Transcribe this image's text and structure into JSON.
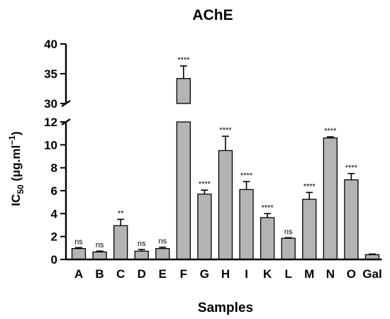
{
  "chart_data": {
    "type": "bar",
    "title": "AChE",
    "xlabel": "Samples",
    "ylabel": {
      "main": "IC",
      "subscript": "50",
      "units_open": " (μg.ml",
      "superscript": "−1",
      "units_close": ")"
    },
    "y_axis": {
      "broken": true,
      "lower_range": [
        0,
        12
      ],
      "lower_ticks": [
        "0",
        "2",
        "4",
        "6",
        "8",
        "10",
        "12"
      ],
      "upper_range": [
        30,
        40
      ],
      "upper_ticks": [
        "30",
        "35",
        "40"
      ]
    },
    "categories": [
      "A",
      "B",
      "C",
      "D",
      "E",
      "F",
      "G",
      "H",
      "I",
      "K",
      "L",
      "M",
      "N",
      "O",
      "Gal"
    ],
    "values": [
      0.95,
      0.65,
      2.95,
      0.72,
      0.95,
      34.2,
      5.7,
      9.5,
      6.1,
      3.65,
      1.85,
      5.25,
      10.6,
      6.95,
      0.42
    ],
    "errors": [
      0.08,
      0.08,
      0.55,
      0.15,
      0.12,
      2.1,
      0.35,
      1.25,
      0.7,
      0.35,
      0.05,
      0.6,
      0.1,
      0.55,
      0.05
    ],
    "significance": [
      "ns",
      "ns",
      "**",
      "ns",
      "ns",
      "****",
      "****",
      "****",
      "****",
      "****",
      "ns",
      "****",
      "****",
      "****",
      ""
    ],
    "bar_color": "#b4b4b4"
  }
}
